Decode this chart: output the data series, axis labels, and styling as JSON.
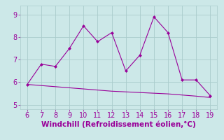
{
  "xlabel": "Windchill (Refroidissement éolien,°C)",
  "x": [
    6,
    7,
    8,
    9,
    10,
    11,
    12,
    13,
    14,
    15,
    16,
    17,
    18,
    19
  ],
  "y_main": [
    5.9,
    6.8,
    6.7,
    7.5,
    8.5,
    7.8,
    8.2,
    6.5,
    7.2,
    8.9,
    8.2,
    6.1,
    6.1,
    5.4
  ],
  "y_trend": [
    5.9,
    5.85,
    5.8,
    5.75,
    5.7,
    5.65,
    5.6,
    5.57,
    5.54,
    5.51,
    5.48,
    5.43,
    5.38,
    5.32
  ],
  "line_color": "#990099",
  "bg_color": "#cce8e8",
  "grid_color": "#aacccc",
  "tick_color": "#990099",
  "label_color": "#990099",
  "xlim": [
    5.5,
    19.5
  ],
  "ylim": [
    4.8,
    9.4
  ],
  "yticks": [
    5,
    6,
    7,
    8,
    9
  ],
  "xticks": [
    6,
    7,
    8,
    9,
    10,
    11,
    12,
    13,
    14,
    15,
    16,
    17,
    18,
    19
  ],
  "xlabel_fontsize": 7.5,
  "tick_fontsize": 7.0
}
